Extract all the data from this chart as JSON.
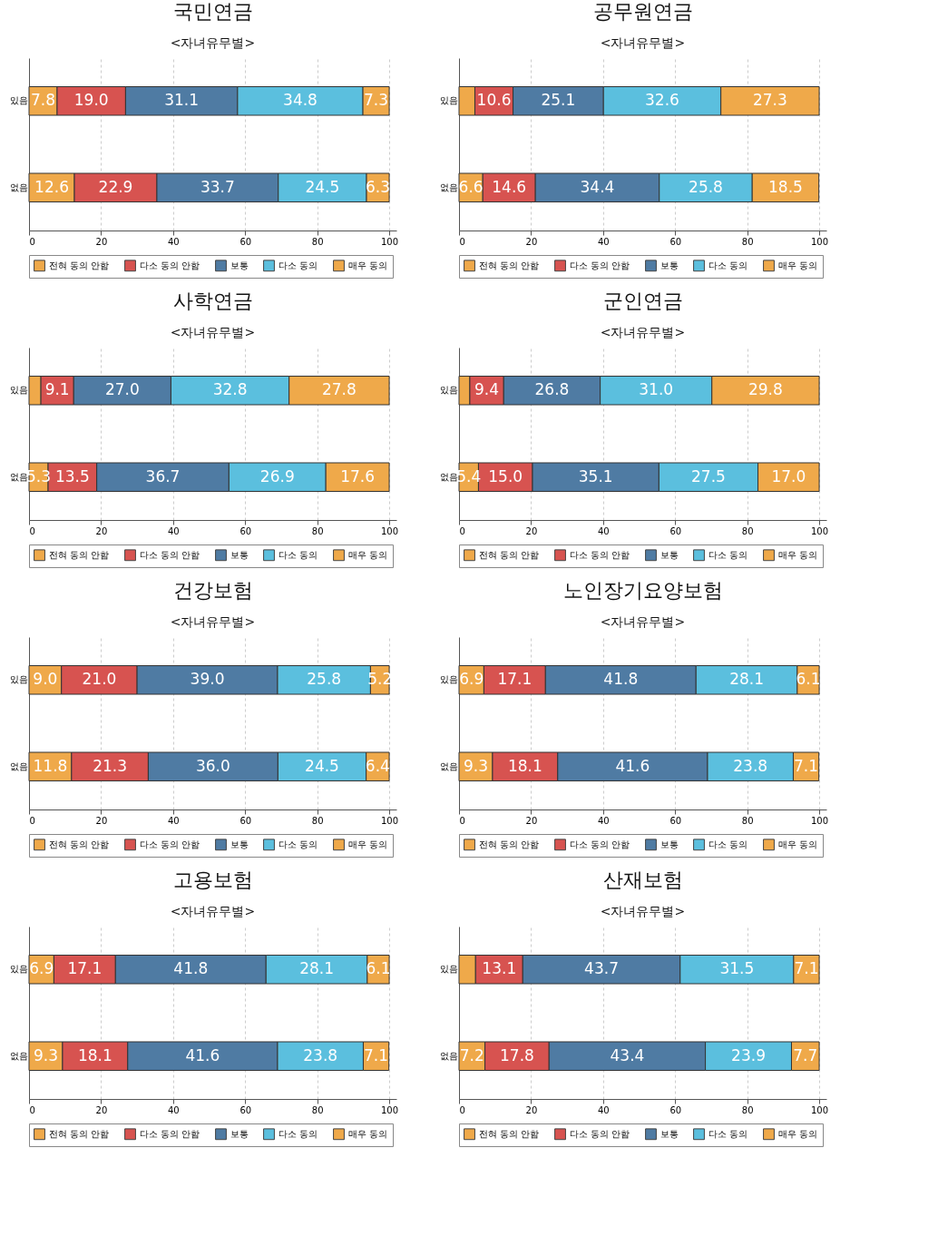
{
  "chart_data": [
    {
      "type": "bar",
      "orientation": "horizontal",
      "stacked": true,
      "title": "국민연금",
      "subtitle": "<자녀유무별>",
      "categories": [
        "있음",
        "없음"
      ],
      "xlim": [
        0,
        102
      ],
      "xticks": [
        0,
        20,
        40,
        60,
        80,
        100
      ],
      "grid": "x",
      "legend": "bottom",
      "series": [
        {
          "name": "전혀 동의 안함",
          "color": "#efa94a",
          "values": [
            7.8,
            12.6
          ],
          "value_labels": [
            "7.8",
            "12.6"
          ]
        },
        {
          "name": "다소 동의 안함",
          "color": "#d75350",
          "values": [
            19.0,
            22.9
          ],
          "value_labels": [
            "19.0",
            "22.9"
          ]
        },
        {
          "name": "보통",
          "color": "#4f7ba3",
          "values": [
            31.1,
            33.7
          ],
          "value_labels": [
            "31.1",
            "33.7"
          ]
        },
        {
          "name": "다소 동의",
          "color": "#5bbfde",
          "values": [
            34.8,
            24.5
          ],
          "value_labels": [
            "34.8",
            "24.5"
          ]
        },
        {
          "name": "매우 동의",
          "color": "#efa94a",
          "values": [
            7.3,
            6.3
          ],
          "value_labels": [
            "7.3",
            "6.3"
          ]
        }
      ]
    },
    {
      "type": "bar",
      "orientation": "horizontal",
      "stacked": true,
      "title": "공무원연금",
      "subtitle": "<자녀유무별>",
      "categories": [
        "있음",
        "없음"
      ],
      "xlim": [
        0,
        102
      ],
      "xticks": [
        0,
        20,
        40,
        60,
        80,
        100
      ],
      "grid": "x",
      "legend": "bottom",
      "series": [
        {
          "name": "전혀 동의 안함",
          "color": "#efa94a",
          "values": [
            4.4,
            6.6
          ],
          "value_labels": [
            null,
            "6.6"
          ]
        },
        {
          "name": "다소 동의 안함",
          "color": "#d75350",
          "values": [
            10.6,
            14.6
          ],
          "value_labels": [
            "10.6",
            "14.6"
          ]
        },
        {
          "name": "보통",
          "color": "#4f7ba3",
          "values": [
            25.1,
            34.4
          ],
          "value_labels": [
            "25.1",
            "34.4"
          ]
        },
        {
          "name": "다소 동의",
          "color": "#5bbfde",
          "values": [
            32.6,
            25.8
          ],
          "value_labels": [
            "32.6",
            "25.8"
          ]
        },
        {
          "name": "매우 동의",
          "color": "#efa94a",
          "values": [
            27.3,
            18.5
          ],
          "value_labels": [
            "27.3",
            "18.5"
          ]
        }
      ]
    },
    {
      "type": "bar",
      "orientation": "horizontal",
      "stacked": true,
      "title": "사학연금",
      "subtitle": "<자녀유무별>",
      "categories": [
        "있음",
        "없음"
      ],
      "xlim": [
        0,
        102
      ],
      "xticks": [
        0,
        20,
        40,
        60,
        80,
        100
      ],
      "grid": "x",
      "legend": "bottom",
      "series": [
        {
          "name": "전혀 동의 안함",
          "color": "#efa94a",
          "values": [
            3.3,
            5.3
          ],
          "value_labels": [
            null,
            "5.3"
          ]
        },
        {
          "name": "다소 동의 안함",
          "color": "#d75350",
          "values": [
            9.1,
            13.5
          ],
          "value_labels": [
            "9.1",
            "13.5"
          ]
        },
        {
          "name": "보통",
          "color": "#4f7ba3",
          "values": [
            27.0,
            36.7
          ],
          "value_labels": [
            "27.0",
            "36.7"
          ]
        },
        {
          "name": "다소 동의",
          "color": "#5bbfde",
          "values": [
            32.8,
            26.9
          ],
          "value_labels": [
            "32.8",
            "26.9"
          ]
        },
        {
          "name": "매우 동의",
          "color": "#efa94a",
          "values": [
            27.8,
            17.6
          ],
          "value_labels": [
            "27.8",
            "17.6"
          ]
        }
      ]
    },
    {
      "type": "bar",
      "orientation": "horizontal",
      "stacked": true,
      "title": "군인연금",
      "subtitle": "<자녀유무별>",
      "categories": [
        "있음",
        "없음"
      ],
      "xlim": [
        0,
        102
      ],
      "xticks": [
        0,
        20,
        40,
        60,
        80,
        100
      ],
      "grid": "x",
      "legend": "bottom",
      "series": [
        {
          "name": "전혀 동의 안함",
          "color": "#efa94a",
          "values": [
            3.0,
            5.4
          ],
          "value_labels": [
            null,
            "5.4"
          ]
        },
        {
          "name": "다소 동의 안함",
          "color": "#d75350",
          "values": [
            9.4,
            15.0
          ],
          "value_labels": [
            "9.4",
            "15.0"
          ]
        },
        {
          "name": "보통",
          "color": "#4f7ba3",
          "values": [
            26.8,
            35.1
          ],
          "value_labels": [
            "26.8",
            "35.1"
          ]
        },
        {
          "name": "다소 동의",
          "color": "#5bbfde",
          "values": [
            31.0,
            27.5
          ],
          "value_labels": [
            "31.0",
            "27.5"
          ]
        },
        {
          "name": "매우 동의",
          "color": "#efa94a",
          "values": [
            29.8,
            17.0
          ],
          "value_labels": [
            "29.8",
            "17.0"
          ]
        }
      ]
    },
    {
      "type": "bar",
      "orientation": "horizontal",
      "stacked": true,
      "title": "건강보험",
      "subtitle": "<자녀유무별>",
      "categories": [
        "있음",
        "없음"
      ],
      "xlim": [
        0,
        102
      ],
      "xticks": [
        0,
        20,
        40,
        60,
        80,
        100
      ],
      "grid": "x",
      "legend": "bottom",
      "series": [
        {
          "name": "전혀 동의 안함",
          "color": "#efa94a",
          "values": [
            9.0,
            11.8
          ],
          "value_labels": [
            "9.0",
            "11.8"
          ]
        },
        {
          "name": "다소 동의 안함",
          "color": "#d75350",
          "values": [
            21.0,
            21.3
          ],
          "value_labels": [
            "21.0",
            "21.3"
          ]
        },
        {
          "name": "보통",
          "color": "#4f7ba3",
          "values": [
            39.0,
            36.0
          ],
          "value_labels": [
            "39.0",
            "36.0"
          ]
        },
        {
          "name": "다소 동의",
          "color": "#5bbfde",
          "values": [
            25.8,
            24.5
          ],
          "value_labels": [
            "25.8",
            "24.5"
          ]
        },
        {
          "name": "매우 동의",
          "color": "#efa94a",
          "values": [
            5.2,
            6.4
          ],
          "value_labels": [
            "5.2",
            "6.4"
          ]
        }
      ]
    },
    {
      "type": "bar",
      "orientation": "horizontal",
      "stacked": true,
      "title": "노인장기요양보험",
      "subtitle": "<자녀유무별>",
      "categories": [
        "있음",
        "없음"
      ],
      "xlim": [
        0,
        102
      ],
      "xticks": [
        0,
        20,
        40,
        60,
        80,
        100
      ],
      "grid": "x",
      "legend": "bottom",
      "series": [
        {
          "name": "전혀 동의 안함",
          "color": "#efa94a",
          "values": [
            6.9,
            9.3
          ],
          "value_labels": [
            "6.9",
            "9.3"
          ]
        },
        {
          "name": "다소 동의 안함",
          "color": "#d75350",
          "values": [
            17.1,
            18.1
          ],
          "value_labels": [
            "17.1",
            "18.1"
          ]
        },
        {
          "name": "보통",
          "color": "#4f7ba3",
          "values": [
            41.8,
            41.6
          ],
          "value_labels": [
            "41.8",
            "41.6"
          ]
        },
        {
          "name": "다소 동의",
          "color": "#5bbfde",
          "values": [
            28.1,
            23.8
          ],
          "value_labels": [
            "28.1",
            "23.8"
          ]
        },
        {
          "name": "매우 동의",
          "color": "#efa94a",
          "values": [
            6.1,
            7.1
          ],
          "value_labels": [
            "6.1",
            "7.1"
          ]
        }
      ]
    },
    {
      "type": "bar",
      "orientation": "horizontal",
      "stacked": true,
      "title": "고용보험",
      "subtitle": "<자녀유무별>",
      "categories": [
        "있음",
        "없음"
      ],
      "xlim": [
        0,
        102
      ],
      "xticks": [
        0,
        20,
        40,
        60,
        80,
        100
      ],
      "grid": "x",
      "legend": "bottom",
      "series": [
        {
          "name": "전혀 동의 안함",
          "color": "#efa94a",
          "values": [
            6.9,
            9.3
          ],
          "value_labels": [
            "6.9",
            "9.3"
          ]
        },
        {
          "name": "다소 동의 안함",
          "color": "#d75350",
          "values": [
            17.1,
            18.1
          ],
          "value_labels": [
            "17.1",
            "18.1"
          ]
        },
        {
          "name": "보통",
          "color": "#4f7ba3",
          "values": [
            41.8,
            41.6
          ],
          "value_labels": [
            "41.8",
            "41.6"
          ]
        },
        {
          "name": "다소 동의",
          "color": "#5bbfde",
          "values": [
            28.1,
            23.8
          ],
          "value_labels": [
            "28.1",
            "23.8"
          ]
        },
        {
          "name": "매우 동의",
          "color": "#efa94a",
          "values": [
            6.1,
            7.1
          ],
          "value_labels": [
            "6.1",
            "7.1"
          ]
        }
      ]
    },
    {
      "type": "bar",
      "orientation": "horizontal",
      "stacked": true,
      "title": "산재보험",
      "subtitle": "<자녀유무별>",
      "categories": [
        "있음",
        "없음"
      ],
      "xlim": [
        0,
        102
      ],
      "xticks": [
        0,
        20,
        40,
        60,
        80,
        100
      ],
      "grid": "x",
      "legend": "bottom",
      "series": [
        {
          "name": "전혀 동의 안함",
          "color": "#efa94a",
          "values": [
            4.6,
            7.2
          ],
          "value_labels": [
            null,
            "7.2"
          ]
        },
        {
          "name": "다소 동의 안함",
          "color": "#d75350",
          "values": [
            13.1,
            17.8
          ],
          "value_labels": [
            "13.1",
            "17.8"
          ]
        },
        {
          "name": "보통",
          "color": "#4f7ba3",
          "values": [
            43.7,
            43.4
          ],
          "value_labels": [
            "43.7",
            "43.4"
          ]
        },
        {
          "name": "다소 동의",
          "color": "#5bbfde",
          "values": [
            31.5,
            23.9
          ],
          "value_labels": [
            "31.5",
            "23.9"
          ]
        },
        {
          "name": "매우 동의",
          "color": "#efa94a",
          "values": [
            7.1,
            7.7
          ],
          "value_labels": [
            "7.1",
            "7.7"
          ]
        }
      ]
    }
  ]
}
